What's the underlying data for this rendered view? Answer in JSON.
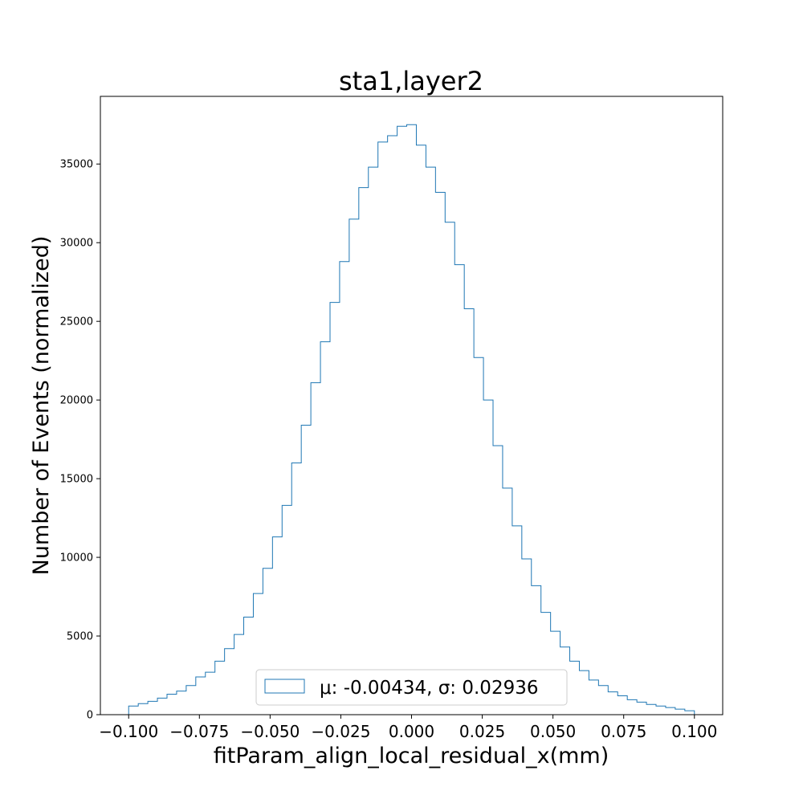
{
  "chart_data": {
    "type": "step-histogram",
    "title": "sta1,layer2",
    "xlabel": "fitParam_align_local_residual_x(mm)",
    "ylabel": "Number of Events (normalized)",
    "xlim": [
      -0.11,
      0.11
    ],
    "ylim": [
      0,
      39300
    ],
    "bin_range": [
      -0.1,
      0.1
    ],
    "x_ticks": [
      -0.1,
      -0.075,
      -0.05,
      -0.025,
      0.0,
      0.025,
      0.05,
      0.075,
      0.1
    ],
    "x_tick_labels": [
      "−0.100",
      "−0.075",
      "−0.050",
      "−0.025",
      "0.000",
      "0.025",
      "0.050",
      "0.075",
      "0.100"
    ],
    "y_ticks": [
      0,
      5000,
      10000,
      15000,
      20000,
      25000,
      30000,
      35000
    ],
    "y_tick_labels": [
      "0",
      "5000",
      "10000",
      "15000",
      "20000",
      "25000",
      "30000",
      "35000"
    ],
    "line_color": "#1f77b4",
    "legend": {
      "label": "μ: -0.00434, σ: 0.02936",
      "position": "lower center"
    },
    "series": [
      {
        "name": "μ: -0.00434, σ: 0.02936",
        "values": [
          550,
          700,
          850,
          1050,
          1300,
          1500,
          1850,
          2400,
          2700,
          3400,
          4200,
          5100,
          6200,
          7700,
          9300,
          11300,
          13300,
          16000,
          18400,
          21100,
          23700,
          26200,
          28800,
          31500,
          33500,
          34800,
          36400,
          36800,
          37400,
          37500,
          36200,
          34800,
          33200,
          31300,
          28600,
          25800,
          22700,
          20000,
          17100,
          14400,
          12000,
          9900,
          8200,
          6500,
          5300,
          4300,
          3400,
          2800,
          2200,
          1850,
          1450,
          1200,
          950,
          800,
          650,
          550,
          450,
          350,
          250
        ]
      }
    ]
  }
}
